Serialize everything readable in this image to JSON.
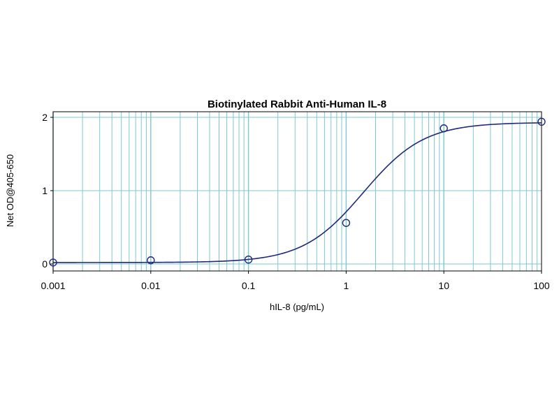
{
  "chart_data": {
    "type": "scatter",
    "title": "Biotinylated Rabbit Anti-Human IL-8",
    "xlabel": "hIL-8 (pg/mL)",
    "ylabel": "Net OD@405-650",
    "x_scale": "log",
    "xlim": [
      0.001,
      100
    ],
    "ylim": [
      0,
      2
    ],
    "x_ticks": [
      0.001,
      0.01,
      0.1,
      1,
      10,
      100
    ],
    "x_tick_labels": [
      "0.001",
      "0.01",
      "0.1",
      "1",
      "10",
      "100"
    ],
    "y_ticks": [
      0,
      1,
      2
    ],
    "y_tick_labels": [
      "0",
      "1",
      "2"
    ],
    "grid": true,
    "legend": "none",
    "series": [
      {
        "x": [
          0.001,
          0.01,
          0.1,
          1,
          10,
          100
        ],
        "y": [
          0.02,
          0.05,
          0.06,
          0.56,
          1.85,
          1.94
        ],
        "marker": "open-circle",
        "fit": "4PL"
      }
    ],
    "fit_params": {
      "bottom": 0.02,
      "top": 1.93,
      "ec50": 1.5,
      "hill": 1.4
    },
    "colors": {
      "grid": "#7ec8cf",
      "series": "#1f2a7a",
      "frame": "#000000"
    }
  }
}
